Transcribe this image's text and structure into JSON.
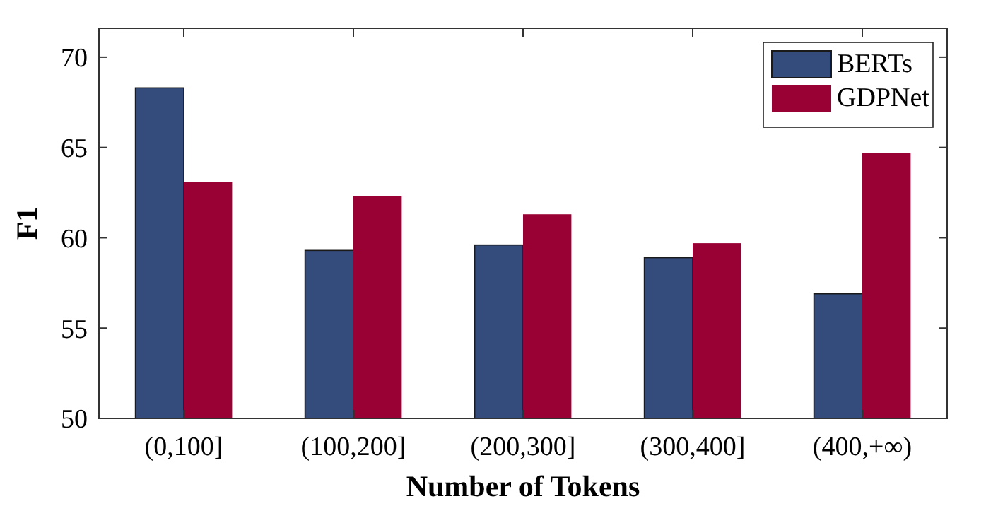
{
  "chart_data": {
    "type": "bar",
    "xlabel": "Number of Tokens",
    "ylabel": "F1",
    "categories": [
      "(0,100]",
      "(100,200]",
      "(200,300]",
      "(300,400]",
      "(400,+∞)"
    ],
    "series": [
      {
        "name": "BERTs",
        "color": "#344c7c",
        "values": [
          68.3,
          59.3,
          59.6,
          58.9,
          56.9
        ]
      },
      {
        "name": "GDPNet",
        "color": "#990033",
        "values": [
          63.1,
          62.3,
          61.3,
          59.7,
          64.7
        ]
      }
    ],
    "ylim": [
      50,
      71.6
    ],
    "yticks": [
      50,
      55,
      60,
      65,
      70
    ],
    "grid": false,
    "legend": "top right"
  }
}
